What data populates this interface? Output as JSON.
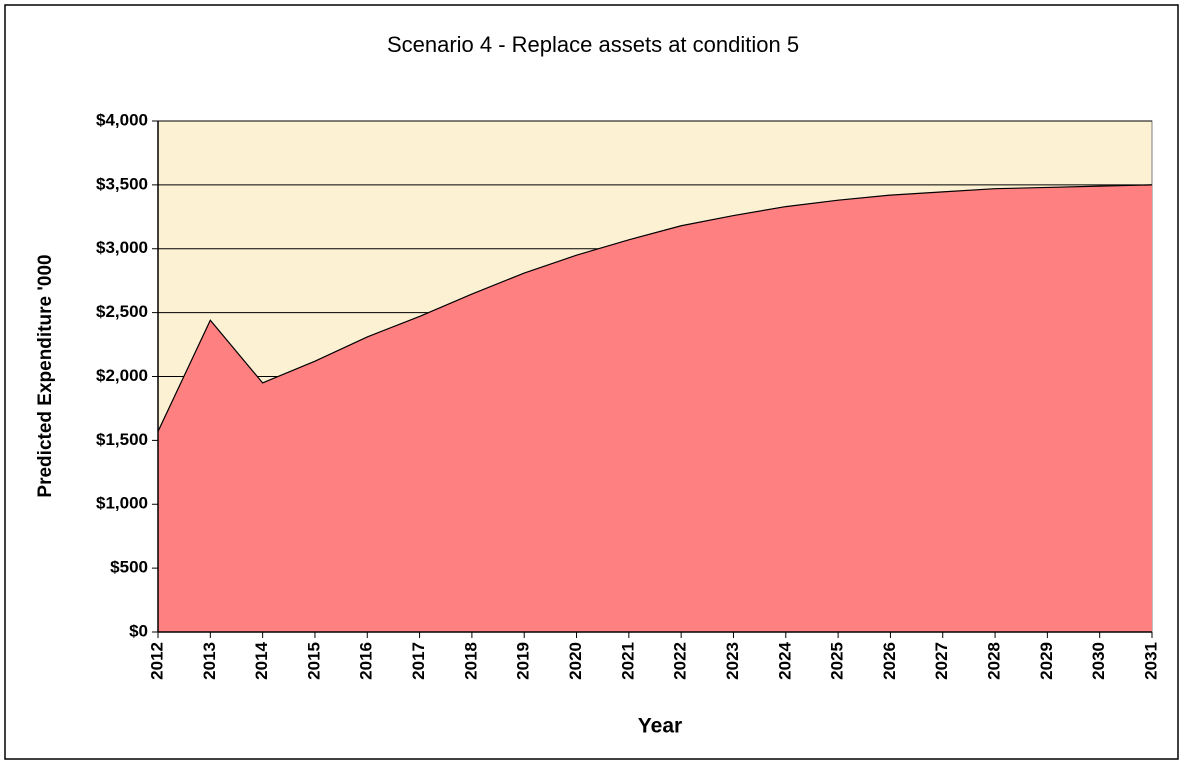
{
  "chart_data": {
    "type": "area",
    "title": "Scenario 4 - Replace assets at condition 5",
    "x_label": "Year",
    "y_label": "Predicted Expenditure '000",
    "x": [
      2012,
      2013,
      2014,
      2015,
      2016,
      2017,
      2018,
      2019,
      2020,
      2021,
      2022,
      2023,
      2024,
      2025,
      2026,
      2027,
      2028,
      2029,
      2030,
      2031
    ],
    "xlim": [
      2012,
      2031
    ],
    "xticks": [
      2012,
      2013,
      2014,
      2015,
      2016,
      2017,
      2018,
      2019,
      2020,
      2021,
      2022,
      2023,
      2024,
      2025,
      2026,
      2027,
      2028,
      2029,
      2030,
      2031
    ],
    "values": [
      1570,
      2440,
      1950,
      2120,
      2310,
      2470,
      2645,
      2810,
      2950,
      3070,
      3180,
      3260,
      3330,
      3380,
      3420,
      3445,
      3470,
      3480,
      3490,
      3500
    ],
    "color": "#ff8080",
    "background": "#fdf1d4",
    "ylim": [
      0,
      4000
    ],
    "yticks": [
      {
        "value": 0,
        "label": "$0"
      },
      {
        "value": 500,
        "label": "$500"
      },
      {
        "value": 1000,
        "label": "$1,000"
      },
      {
        "value": 1500,
        "label": "$1,500"
      },
      {
        "value": 2000,
        "label": "$2,000"
      },
      {
        "value": 2500,
        "label": "$2,500"
      },
      {
        "value": 3000,
        "label": "$3,000"
      },
      {
        "value": 3500,
        "label": "$3,500"
      },
      {
        "value": 4000,
        "label": "$4,000"
      }
    ],
    "grid": true
  }
}
